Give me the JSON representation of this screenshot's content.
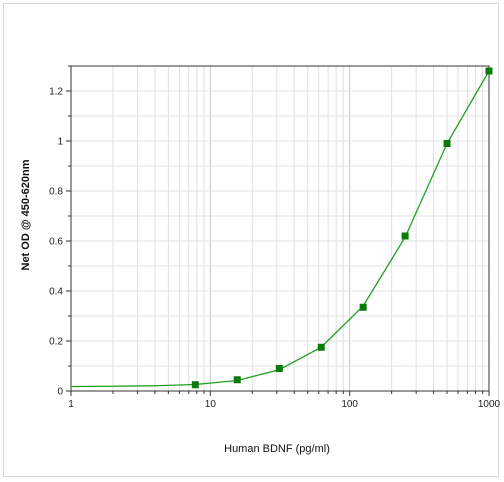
{
  "chart_data": {
    "type": "scatter",
    "title": "",
    "xlabel": "Human BDNF (pg/ml)",
    "ylabel": "Net OD @ 450-620nm",
    "x_scale": "log",
    "xlim": [
      1,
      1000
    ],
    "ylim": [
      0,
      1.3
    ],
    "x_ticks": [
      1,
      10,
      100,
      1000
    ],
    "x_tick_labels": [
      "1",
      "10",
      "100",
      "1000"
    ],
    "y_ticks": [
      0,
      0.2,
      0.4,
      0.6,
      0.8,
      1,
      1.2
    ],
    "y_tick_labels": [
      "0",
      "0.2",
      "0.4",
      "0.6",
      "0.8",
      "1",
      "1.2"
    ],
    "grid": true,
    "series": [
      {
        "type": "scatter",
        "color": "#0a7a0a",
        "marker": "square",
        "x": [
          7.8,
          15.6,
          31.25,
          62.5,
          125,
          250,
          500,
          1000
        ],
        "y": [
          0.025,
          0.045,
          0.09,
          0.175,
          0.335,
          0.62,
          0.99,
          1.28
        ]
      },
      {
        "type": "line",
        "color": "#22a022",
        "x": [
          1,
          2,
          4,
          7.8,
          15.6,
          31.25,
          62.5,
          125,
          250,
          500,
          1000
        ],
        "y": [
          0.018,
          0.019,
          0.021,
          0.026,
          0.042,
          0.085,
          0.175,
          0.34,
          0.615,
          0.99,
          1.28
        ]
      }
    ]
  }
}
